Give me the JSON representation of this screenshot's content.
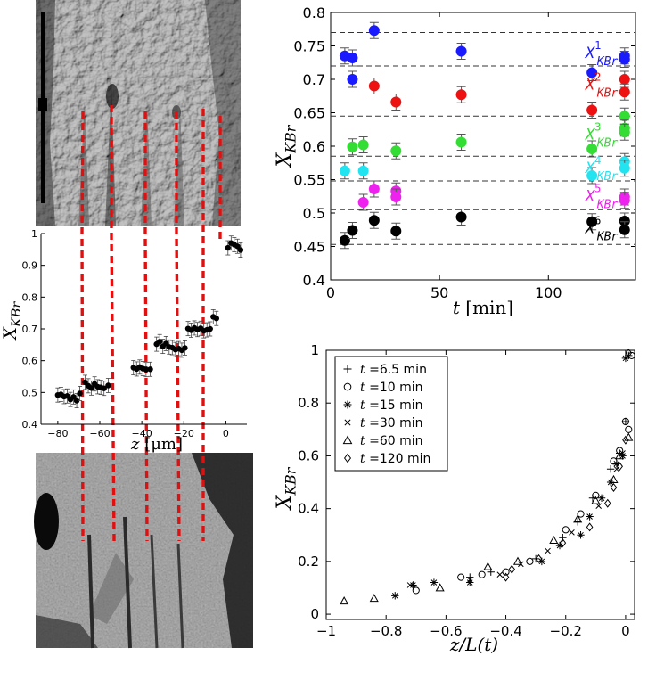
{
  "colors": {
    "s1": "#1a1aff",
    "s2": "#ee1111",
    "s3": "#33dd33",
    "s4": "#22e4f0",
    "s5": "#ee22ee",
    "s6": "#000000",
    "red_dash": "#e01010"
  },
  "chart_data": [
    {
      "type": "scatter",
      "panel": "composition-vs-time",
      "xlabel_var": "t",
      "xlabel_unit": "[min]",
      "ylabel": "X",
      "ylabel_sub": "KBr",
      "xlim": [
        0,
        140
      ],
      "ylim": [
        0.4,
        0.8
      ],
      "xticks": [
        0,
        50,
        100
      ],
      "yticks": [
        0.4,
        0.45,
        0.5,
        0.55,
        0.6,
        0.65,
        0.7,
        0.75,
        0.8
      ],
      "xtick_labels": [
        "0",
        "50",
        "100"
      ],
      "ytick_labels": [
        "0.4",
        "0.45",
        "0.5",
        "0.55",
        "0.6",
        "0.65",
        "0.7",
        "0.75",
        "0.8"
      ],
      "reference_lines": [
        0.77,
        0.72,
        0.645,
        0.585,
        0.548,
        0.505,
        0.453
      ],
      "series": [
        {
          "label": "X",
          "sup": "1",
          "sub": "KBr",
          "color": "#1a1aff",
          "label_at": [
            117,
            0.732
          ],
          "points": [
            [
              6.5,
              0.735
            ],
            [
              10,
              0.732
            ],
            [
              10,
              0.7
            ],
            [
              20,
              0.773
            ],
            [
              60,
              0.742
            ],
            [
              120,
              0.71
            ],
            [
              135,
              0.735
            ],
            [
              135,
              0.73
            ]
          ]
        },
        {
          "label": "X",
          "sup": "2",
          "sub": "KBr",
          "color": "#ee1111",
          "label_at": [
            117,
            0.685
          ],
          "points": [
            [
              20,
              0.69
            ],
            [
              30,
              0.666
            ],
            [
              60,
              0.677
            ],
            [
              120,
              0.654
            ],
            [
              135,
              0.7
            ],
            [
              135,
              0.681
            ]
          ]
        },
        {
          "label": "X",
          "sup": "3",
          "sub": "KBr",
          "color": "#33dd33",
          "label_at": [
            117,
            0.61
          ],
          "points": [
            [
              10,
              0.599
            ],
            [
              15,
              0.602
            ],
            [
              30,
              0.593
            ],
            [
              60,
              0.606
            ],
            [
              120,
              0.596
            ],
            [
              135,
              0.645
            ],
            [
              135,
              0.627
            ],
            [
              135,
              0.621
            ]
          ]
        },
        {
          "label": "X",
          "sup": "4",
          "sub": "KBr",
          "color": "#22e4f0",
          "label_at": [
            117,
            0.56
          ],
          "points": [
            [
              6.5,
              0.563
            ],
            [
              15,
              0.563
            ],
            [
              120,
              0.556
            ],
            [
              135,
              0.577
            ],
            [
              135,
              0.567
            ]
          ]
        },
        {
          "label": "X",
          "sup": "5",
          "sub": "KBr",
          "color": "#ee22ee",
          "label_at": [
            117,
            0.518
          ],
          "points": [
            [
              15,
              0.516
            ],
            [
              20,
              0.536
            ],
            [
              30,
              0.533
            ],
            [
              30,
              0.524
            ],
            [
              135,
              0.524
            ],
            [
              135,
              0.519
            ]
          ]
        },
        {
          "label": "X",
          "sup": "6",
          "sub": "KBr",
          "color": "#000000",
          "label_at": [
            117,
            0.47
          ],
          "points": [
            [
              6.5,
              0.459
            ],
            [
              10,
              0.474
            ],
            [
              20,
              0.489
            ],
            [
              30,
              0.473
            ],
            [
              60,
              0.494
            ],
            [
              120,
              0.487
            ],
            [
              135,
              0.488
            ],
            [
              135,
              0.475
            ]
          ]
        }
      ]
    },
    {
      "type": "scatter",
      "panel": "composition-profile",
      "xlabel_var": "z",
      "xlabel_unit": "[μm]",
      "ylabel": "X",
      "ylabel_sub": "KBr",
      "xlim": [
        -88,
        10
      ],
      "ylim": [
        0.4,
        1.0
      ],
      "xticks": [
        -80,
        -60,
        -40,
        -20,
        0
      ],
      "yticks": [
        0.4,
        0.5,
        0.6,
        0.7,
        0.8,
        0.9,
        1.0
      ],
      "xtick_labels": [
        "−80",
        "−60",
        "−40",
        "−20",
        "0"
      ],
      "ytick_labels": [
        "0.4",
        "0.5",
        "0.6",
        "0.7",
        "0.8",
        "0.9",
        "1"
      ],
      "points": [
        [
          -80,
          0.492
        ],
        [
          -78.5,
          0.494
        ],
        [
          -77,
          0.487
        ],
        [
          -75.5,
          0.489
        ],
        [
          -74,
          0.478
        ],
        [
          -72.5,
          0.486
        ],
        [
          -71,
          0.474
        ],
        [
          -69.5,
          0.497
        ],
        [
          -67,
          0.532
        ],
        [
          -65.5,
          0.521
        ],
        [
          -64,
          0.514
        ],
        [
          -62.5,
          0.527
        ],
        [
          -61,
          0.518
        ],
        [
          -59.5,
          0.516
        ],
        [
          -58,
          0.513
        ],
        [
          -56,
          0.522
        ],
        [
          -44,
          0.578
        ],
        [
          -42.5,
          0.574
        ],
        [
          -41,
          0.58
        ],
        [
          -39.5,
          0.575
        ],
        [
          -38,
          0.572
        ],
        [
          -36,
          0.573
        ],
        [
          -33,
          0.652
        ],
        [
          -31.5,
          0.66
        ],
        [
          -30,
          0.645
        ],
        [
          -28.5,
          0.654
        ],
        [
          -27,
          0.643
        ],
        [
          -25.5,
          0.641
        ],
        [
          -24,
          0.635
        ],
        [
          -22.5,
          0.638
        ],
        [
          -21,
          0.633
        ],
        [
          -19.5,
          0.64
        ],
        [
          -18,
          0.701
        ],
        [
          -16.5,
          0.696
        ],
        [
          -15,
          0.703
        ],
        [
          -13.5,
          0.698
        ],
        [
          -12,
          0.702
        ],
        [
          -10.5,
          0.694
        ],
        [
          -9,
          0.697
        ],
        [
          -7.5,
          0.7
        ],
        [
          -6,
          0.738
        ],
        [
          -4.5,
          0.733
        ],
        [
          1,
          0.955
        ],
        [
          2.5,
          0.97
        ],
        [
          4,
          0.965
        ],
        [
          5.5,
          0.96
        ],
        [
          7,
          0.948
        ]
      ]
    },
    {
      "type": "scatter",
      "panel": "scaled-profile",
      "xlabel_var": "z/L(t)",
      "ylabel": "X",
      "ylabel_sub": "KBr",
      "xlim": [
        -1,
        0.03
      ],
      "ylim": [
        -0.02,
        1.0
      ],
      "xticks": [
        -1,
        -0.8,
        -0.6,
        -0.4,
        -0.2,
        0
      ],
      "yticks": [
        0,
        0.2,
        0.4,
        0.6,
        0.8,
        1
      ],
      "xtick_labels": [
        "−1",
        "−0.8",
        "−0.6",
        "−0.4",
        "−0.2",
        "0"
      ],
      "ytick_labels": [
        "0",
        "0.2",
        "0.4",
        "0.6",
        "0.8",
        "1"
      ],
      "legend_position": "top-left",
      "series": [
        {
          "name_var": "t",
          "name_value": "=6.5 min",
          "marker": "plus",
          "points": [
            [
              -0.52,
              0.14
            ],
            [
              -0.45,
              0.16
            ],
            [
              -0.3,
              0.21
            ],
            [
              -0.21,
              0.29
            ],
            [
              -0.16,
              0.35
            ],
            [
              -0.11,
              0.44
            ],
            [
              -0.05,
              0.55
            ],
            [
              -0.02,
              0.61
            ],
            [
              0.0,
              0.73
            ],
            [
              0.01,
              0.98
            ]
          ]
        },
        {
          "name_var": "t",
          "name_value": "=10 min",
          "marker": "circle",
          "points": [
            [
              -0.7,
              0.09
            ],
            [
              -0.55,
              0.14
            ],
            [
              -0.48,
              0.15
            ],
            [
              -0.4,
              0.16
            ],
            [
              -0.32,
              0.2
            ],
            [
              -0.2,
              0.32
            ],
            [
              -0.15,
              0.38
            ],
            [
              -0.1,
              0.45
            ],
            [
              -0.04,
              0.58
            ],
            [
              -0.02,
              0.62
            ],
            [
              0.0,
              0.73
            ],
            [
              0.01,
              0.7
            ],
            [
              0.02,
              0.98
            ]
          ]
        },
        {
          "name_var": "t",
          "name_value": "=15 min",
          "marker": "asterisk",
          "points": [
            [
              -0.77,
              0.07
            ],
            [
              -0.71,
              0.11
            ],
            [
              -0.64,
              0.12
            ],
            [
              -0.52,
              0.12
            ],
            [
              -0.28,
              0.2
            ],
            [
              -0.22,
              0.26
            ],
            [
              -0.15,
              0.3
            ],
            [
              -0.12,
              0.37
            ],
            [
              -0.08,
              0.44
            ],
            [
              -0.05,
              0.5
            ],
            [
              -0.03,
              0.57
            ],
            [
              -0.01,
              0.6
            ],
            [
              0.0,
              0.97
            ]
          ]
        },
        {
          "name_var": "t",
          "name_value": "=30 min",
          "marker": "cross",
          "points": [
            [
              -0.72,
              0.11
            ],
            [
              -0.52,
              0.13
            ],
            [
              -0.42,
              0.15
            ],
            [
              -0.35,
              0.19
            ],
            [
              -0.26,
              0.24
            ],
            [
              -0.18,
              0.31
            ],
            [
              -0.09,
              0.41
            ],
            [
              -0.03,
              0.55
            ],
            [
              -0.01,
              0.61
            ]
          ]
        },
        {
          "name_var": "t",
          "name_value": "=60 min",
          "marker": "triangle",
          "points": [
            [
              -0.94,
              0.05
            ],
            [
              -0.84,
              0.06
            ],
            [
              -0.62,
              0.1
            ],
            [
              -0.46,
              0.18
            ],
            [
              -0.36,
              0.2
            ],
            [
              -0.24,
              0.28
            ],
            [
              -0.16,
              0.36
            ],
            [
              -0.1,
              0.43
            ],
            [
              -0.04,
              0.51
            ],
            [
              -0.02,
              0.6
            ],
            [
              0.01,
              0.67
            ]
          ]
        },
        {
          "name_var": "t",
          "name_value": "=120 min",
          "marker": "diamond",
          "points": [
            [
              -0.4,
              0.14
            ],
            [
              -0.38,
              0.17
            ],
            [
              -0.29,
              0.21
            ],
            [
              -0.21,
              0.27
            ],
            [
              -0.12,
              0.33
            ],
            [
              -0.06,
              0.42
            ],
            [
              -0.04,
              0.48
            ],
            [
              -0.02,
              0.56
            ],
            [
              0.0,
              0.66
            ],
            [
              0.01,
              0.99
            ]
          ]
        }
      ]
    }
  ]
}
